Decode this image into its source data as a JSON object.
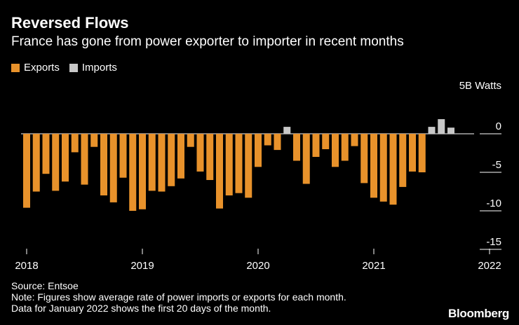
{
  "title": "Reversed Flows",
  "subtitle": "France has gone from power exporter to importer in recent months",
  "legend": [
    {
      "label": "Exports",
      "color": "#e8922b"
    },
    {
      "label": "Imports",
      "color": "#c8c8c8"
    }
  ],
  "footer": {
    "source": "Source: Entsoe",
    "note": "Note: Figures show average rate of power imports or exports for each month.",
    "note2": "Data for January 2022 shows the first 20 days of the month."
  },
  "brand": "Bloomberg",
  "chart_data": {
    "type": "bar",
    "title": "Reversed Flows",
    "ylabel": "5B Watts",
    "ylim": [
      -15,
      1.5
    ],
    "yticks": [
      0,
      -5,
      -10,
      -15
    ],
    "xtick_labels": [
      "2018",
      "2019",
      "2020",
      "2021",
      "2022"
    ],
    "grid": false,
    "legend_position": "top-left",
    "categories": [
      "2018-01",
      "2018-02",
      "2018-03",
      "2018-04",
      "2018-05",
      "2018-06",
      "2018-07",
      "2018-08",
      "2018-09",
      "2018-10",
      "2018-11",
      "2018-12",
      "2019-01",
      "2019-02",
      "2019-03",
      "2019-04",
      "2019-05",
      "2019-06",
      "2019-07",
      "2019-08",
      "2019-09",
      "2019-10",
      "2019-11",
      "2019-12",
      "2020-01",
      "2020-02",
      "2020-03",
      "2020-04",
      "2020-05",
      "2020-06",
      "2020-07",
      "2020-08",
      "2020-09",
      "2020-10",
      "2020-11",
      "2020-12",
      "2021-01",
      "2021-02",
      "2021-03",
      "2021-04",
      "2021-05",
      "2021-06",
      "2021-07",
      "2021-08",
      "2021-09",
      "2021-10",
      "2021-11",
      "2021-12",
      "2022-01"
    ],
    "values": [
      -9.6,
      -7.5,
      -5.2,
      -7.4,
      -6.2,
      -2.4,
      -6.6,
      -1.7,
      -8.0,
      -8.9,
      -5.7,
      -10.0,
      -9.8,
      -7.4,
      -7.5,
      -6.8,
      -5.8,
      -1.7,
      -4.9,
      -6.0,
      -9.7,
      -8.0,
      -7.7,
      -8.3,
      -4.3,
      -1.5,
      -2.1,
      0.9,
      -3.5,
      -6.5,
      -3.0,
      -2.0,
      -4.3,
      -3.5,
      -1.6,
      -6.4,
      -8.3,
      -8.8,
      -9.2,
      -6.9,
      -4.9,
      -5.0,
      0.9,
      1.9,
      0.8,
      0,
      0,
      0,
      0
    ],
    "series": [
      {
        "name": "Exports",
        "color": "#e8922b"
      },
      {
        "name": "Imports",
        "color": "#c8c8c8"
      }
    ]
  }
}
